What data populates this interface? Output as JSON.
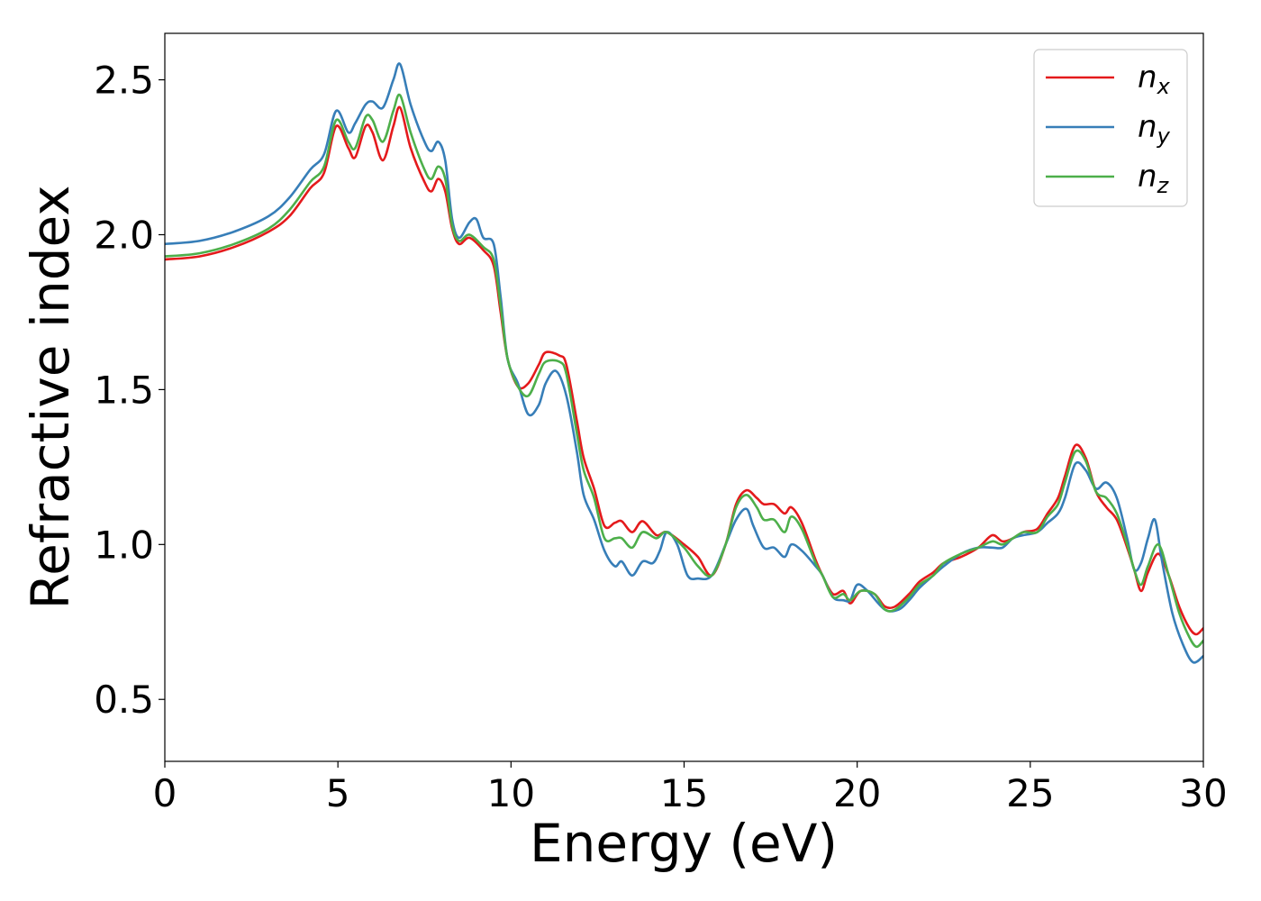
{
  "chart_data": {
    "type": "line",
    "title": "",
    "xlabel": "Energy (eV)",
    "ylabel": "Refractive index",
    "xlim": [
      0,
      30
    ],
    "ylim": [
      0.3,
      2.65
    ],
    "xticks": [
      0,
      5,
      10,
      15,
      20,
      25,
      30
    ],
    "xtick_labels": [
      "0",
      "5",
      "10",
      "15",
      "20",
      "25",
      "30"
    ],
    "yticks": [
      0.5,
      1.0,
      1.5,
      2.0,
      2.5
    ],
    "ytick_labels": [
      "0.5",
      "1.0",
      "1.5",
      "2.0",
      "2.5"
    ],
    "grid": false,
    "legend_position": "top-right",
    "series": [
      {
        "name": "n_x",
        "label_main": "n",
        "label_sub": "x",
        "color": "#e41a1c",
        "points": [
          [
            0,
            1.92
          ],
          [
            1,
            1.93
          ],
          [
            2,
            1.96
          ],
          [
            3,
            2.01
          ],
          [
            3.6,
            2.06
          ],
          [
            4.2,
            2.15
          ],
          [
            4.6,
            2.2
          ],
          [
            4.95,
            2.35
          ],
          [
            5.3,
            2.28
          ],
          [
            5.5,
            2.25
          ],
          [
            5.8,
            2.35
          ],
          [
            6.0,
            2.33
          ],
          [
            6.3,
            2.24
          ],
          [
            6.6,
            2.35
          ],
          [
            6.8,
            2.41
          ],
          [
            7.1,
            2.28
          ],
          [
            7.5,
            2.17
          ],
          [
            7.7,
            2.14
          ],
          [
            7.9,
            2.18
          ],
          [
            8.1,
            2.14
          ],
          [
            8.3,
            2.02
          ],
          [
            8.5,
            1.97
          ],
          [
            8.8,
            1.99
          ],
          [
            9.2,
            1.95
          ],
          [
            9.5,
            1.9
          ],
          [
            9.7,
            1.75
          ],
          [
            9.9,
            1.6
          ],
          [
            10.2,
            1.51
          ],
          [
            10.5,
            1.52
          ],
          [
            10.8,
            1.58
          ],
          [
            11.0,
            1.62
          ],
          [
            11.4,
            1.61
          ],
          [
            11.6,
            1.58
          ],
          [
            11.9,
            1.4
          ],
          [
            12.1,
            1.28
          ],
          [
            12.4,
            1.18
          ],
          [
            12.7,
            1.06
          ],
          [
            13.0,
            1.07
          ],
          [
            13.2,
            1.075
          ],
          [
            13.5,
            1.04
          ],
          [
            13.8,
            1.075
          ],
          [
            14.2,
            1.03
          ],
          [
            14.5,
            1.04
          ],
          [
            15.0,
            1.0
          ],
          [
            15.4,
            0.96
          ],
          [
            15.8,
            0.9
          ],
          [
            16.2,
            1.0
          ],
          [
            16.5,
            1.13
          ],
          [
            16.8,
            1.175
          ],
          [
            17.1,
            1.15
          ],
          [
            17.3,
            1.13
          ],
          [
            17.6,
            1.13
          ],
          [
            17.9,
            1.1
          ],
          [
            18.1,
            1.12
          ],
          [
            18.4,
            1.07
          ],
          [
            18.8,
            0.95
          ],
          [
            19.0,
            0.9
          ],
          [
            19.3,
            0.84
          ],
          [
            19.6,
            0.85
          ],
          [
            19.8,
            0.81
          ],
          [
            20.1,
            0.85
          ],
          [
            20.5,
            0.84
          ],
          [
            20.8,
            0.8
          ],
          [
            21.1,
            0.8
          ],
          [
            21.5,
            0.84
          ],
          [
            21.8,
            0.88
          ],
          [
            22.2,
            0.91
          ],
          [
            22.5,
            0.94
          ],
          [
            23.0,
            0.96
          ],
          [
            23.5,
            0.99
          ],
          [
            23.9,
            1.03
          ],
          [
            24.2,
            1.01
          ],
          [
            24.5,
            1.02
          ],
          [
            24.8,
            1.04
          ],
          [
            25.2,
            1.05
          ],
          [
            25.5,
            1.1
          ],
          [
            25.8,
            1.15
          ],
          [
            26.0,
            1.22
          ],
          [
            26.3,
            1.32
          ],
          [
            26.6,
            1.28
          ],
          [
            26.9,
            1.17
          ],
          [
            27.2,
            1.12
          ],
          [
            27.5,
            1.08
          ],
          [
            27.8,
            0.99
          ],
          [
            28.0,
            0.92
          ],
          [
            28.2,
            0.85
          ],
          [
            28.4,
            0.91
          ],
          [
            28.7,
            0.97
          ],
          [
            29.0,
            0.9
          ],
          [
            29.3,
            0.8
          ],
          [
            29.6,
            0.73
          ],
          [
            29.8,
            0.71
          ],
          [
            30,
            0.73
          ]
        ]
      },
      {
        "name": "n_y",
        "label_main": "n",
        "label_sub": "y",
        "color": "#377eb8",
        "points": [
          [
            0,
            1.97
          ],
          [
            1,
            1.98
          ],
          [
            2,
            2.01
          ],
          [
            3,
            2.06
          ],
          [
            3.6,
            2.12
          ],
          [
            4.2,
            2.21
          ],
          [
            4.6,
            2.26
          ],
          [
            4.95,
            2.4
          ],
          [
            5.3,
            2.33
          ],
          [
            5.5,
            2.36
          ],
          [
            5.8,
            2.42
          ],
          [
            6.0,
            2.43
          ],
          [
            6.3,
            2.41
          ],
          [
            6.6,
            2.5
          ],
          [
            6.8,
            2.55
          ],
          [
            7.1,
            2.42
          ],
          [
            7.5,
            2.3
          ],
          [
            7.7,
            2.27
          ],
          [
            7.9,
            2.3
          ],
          [
            8.1,
            2.24
          ],
          [
            8.3,
            2.05
          ],
          [
            8.5,
            1.99
          ],
          [
            8.8,
            2.04
          ],
          [
            9.0,
            2.05
          ],
          [
            9.2,
            1.99
          ],
          [
            9.5,
            1.97
          ],
          [
            9.7,
            1.8
          ],
          [
            9.9,
            1.6
          ],
          [
            10.2,
            1.52
          ],
          [
            10.5,
            1.42
          ],
          [
            10.8,
            1.45
          ],
          [
            11.0,
            1.52
          ],
          [
            11.3,
            1.56
          ],
          [
            11.6,
            1.48
          ],
          [
            11.9,
            1.3
          ],
          [
            12.1,
            1.16
          ],
          [
            12.4,
            1.08
          ],
          [
            12.7,
            0.98
          ],
          [
            13.0,
            0.93
          ],
          [
            13.2,
            0.945
          ],
          [
            13.5,
            0.9
          ],
          [
            13.8,
            0.945
          ],
          [
            14.1,
            0.94
          ],
          [
            14.3,
            0.98
          ],
          [
            14.5,
            1.04
          ],
          [
            14.8,
            1.0
          ],
          [
            15.1,
            0.9
          ],
          [
            15.4,
            0.89
          ],
          [
            15.8,
            0.9
          ],
          [
            16.2,
            1.0
          ],
          [
            16.5,
            1.08
          ],
          [
            16.8,
            1.115
          ],
          [
            17.0,
            1.06
          ],
          [
            17.3,
            0.99
          ],
          [
            17.6,
            0.99
          ],
          [
            17.9,
            0.96
          ],
          [
            18.1,
            1.0
          ],
          [
            18.4,
            0.98
          ],
          [
            18.8,
            0.93
          ],
          [
            19.0,
            0.9
          ],
          [
            19.3,
            0.83
          ],
          [
            19.6,
            0.82
          ],
          [
            19.8,
            0.82
          ],
          [
            20.0,
            0.87
          ],
          [
            20.3,
            0.85
          ],
          [
            20.8,
            0.79
          ],
          [
            21.2,
            0.79
          ],
          [
            21.5,
            0.82
          ],
          [
            21.8,
            0.86
          ],
          [
            22.2,
            0.9
          ],
          [
            22.5,
            0.93
          ],
          [
            23.0,
            0.97
          ],
          [
            23.5,
            0.99
          ],
          [
            23.9,
            0.99
          ],
          [
            24.2,
            0.99
          ],
          [
            24.5,
            1.02
          ],
          [
            24.8,
            1.03
          ],
          [
            25.2,
            1.04
          ],
          [
            25.5,
            1.07
          ],
          [
            25.8,
            1.1
          ],
          [
            26.0,
            1.15
          ],
          [
            26.3,
            1.26
          ],
          [
            26.6,
            1.24
          ],
          [
            26.9,
            1.18
          ],
          [
            27.2,
            1.2
          ],
          [
            27.5,
            1.15
          ],
          [
            27.8,
            1.02
          ],
          [
            28.0,
            0.92
          ],
          [
            28.2,
            0.94
          ],
          [
            28.4,
            1.02
          ],
          [
            28.6,
            1.08
          ],
          [
            28.8,
            0.95
          ],
          [
            29.1,
            0.78
          ],
          [
            29.4,
            0.68
          ],
          [
            29.7,
            0.62
          ],
          [
            30,
            0.64
          ]
        ]
      },
      {
        "name": "n_z",
        "label_main": "n",
        "label_sub": "z",
        "color": "#4daf4a",
        "points": [
          [
            0,
            1.93
          ],
          [
            1,
            1.94
          ],
          [
            2,
            1.97
          ],
          [
            3,
            2.02
          ],
          [
            3.6,
            2.08
          ],
          [
            4.2,
            2.17
          ],
          [
            4.6,
            2.22
          ],
          [
            4.95,
            2.37
          ],
          [
            5.3,
            2.3
          ],
          [
            5.5,
            2.28
          ],
          [
            5.8,
            2.38
          ],
          [
            6.0,
            2.37
          ],
          [
            6.3,
            2.3
          ],
          [
            6.6,
            2.4
          ],
          [
            6.8,
            2.45
          ],
          [
            7.1,
            2.33
          ],
          [
            7.5,
            2.21
          ],
          [
            7.7,
            2.18
          ],
          [
            7.9,
            2.22
          ],
          [
            8.1,
            2.18
          ],
          [
            8.3,
            2.03
          ],
          [
            8.5,
            1.98
          ],
          [
            8.8,
            2.0
          ],
          [
            9.2,
            1.96
          ],
          [
            9.5,
            1.92
          ],
          [
            9.7,
            1.77
          ],
          [
            9.9,
            1.6
          ],
          [
            10.2,
            1.51
          ],
          [
            10.5,
            1.48
          ],
          [
            10.8,
            1.55
          ],
          [
            11.0,
            1.59
          ],
          [
            11.4,
            1.59
          ],
          [
            11.6,
            1.55
          ],
          [
            11.9,
            1.36
          ],
          [
            12.1,
            1.24
          ],
          [
            12.4,
            1.15
          ],
          [
            12.7,
            1.02
          ],
          [
            13.0,
            1.02
          ],
          [
            13.2,
            1.02
          ],
          [
            13.5,
            0.99
          ],
          [
            13.8,
            1.04
          ],
          [
            14.2,
            1.02
          ],
          [
            14.5,
            1.04
          ],
          [
            15.0,
            0.99
          ],
          [
            15.4,
            0.93
          ],
          [
            15.8,
            0.9
          ],
          [
            16.2,
            1.0
          ],
          [
            16.5,
            1.12
          ],
          [
            16.8,
            1.16
          ],
          [
            17.1,
            1.12
          ],
          [
            17.3,
            1.08
          ],
          [
            17.6,
            1.08
          ],
          [
            17.9,
            1.04
          ],
          [
            18.1,
            1.09
          ],
          [
            18.4,
            1.05
          ],
          [
            18.8,
            0.94
          ],
          [
            19.0,
            0.9
          ],
          [
            19.3,
            0.83
          ],
          [
            19.6,
            0.84
          ],
          [
            19.8,
            0.82
          ],
          [
            20.1,
            0.85
          ],
          [
            20.5,
            0.84
          ],
          [
            20.8,
            0.79
          ],
          [
            21.1,
            0.79
          ],
          [
            21.5,
            0.83
          ],
          [
            21.8,
            0.87
          ],
          [
            22.2,
            0.9
          ],
          [
            22.5,
            0.94
          ],
          [
            23.0,
            0.97
          ],
          [
            23.5,
            0.99
          ],
          [
            23.9,
            1.01
          ],
          [
            24.2,
            1.0
          ],
          [
            24.5,
            1.02
          ],
          [
            24.8,
            1.04
          ],
          [
            25.2,
            1.04
          ],
          [
            25.5,
            1.09
          ],
          [
            25.8,
            1.13
          ],
          [
            26.0,
            1.2
          ],
          [
            26.3,
            1.3
          ],
          [
            26.6,
            1.27
          ],
          [
            26.9,
            1.17
          ],
          [
            27.2,
            1.15
          ],
          [
            27.5,
            1.1
          ],
          [
            27.8,
            1.0
          ],
          [
            28.0,
            0.92
          ],
          [
            28.2,
            0.87
          ],
          [
            28.4,
            0.93
          ],
          [
            28.7,
            1.0
          ],
          [
            29.0,
            0.9
          ],
          [
            29.3,
            0.78
          ],
          [
            29.6,
            0.7
          ],
          [
            29.8,
            0.67
          ],
          [
            30,
            0.69
          ]
        ]
      }
    ]
  }
}
